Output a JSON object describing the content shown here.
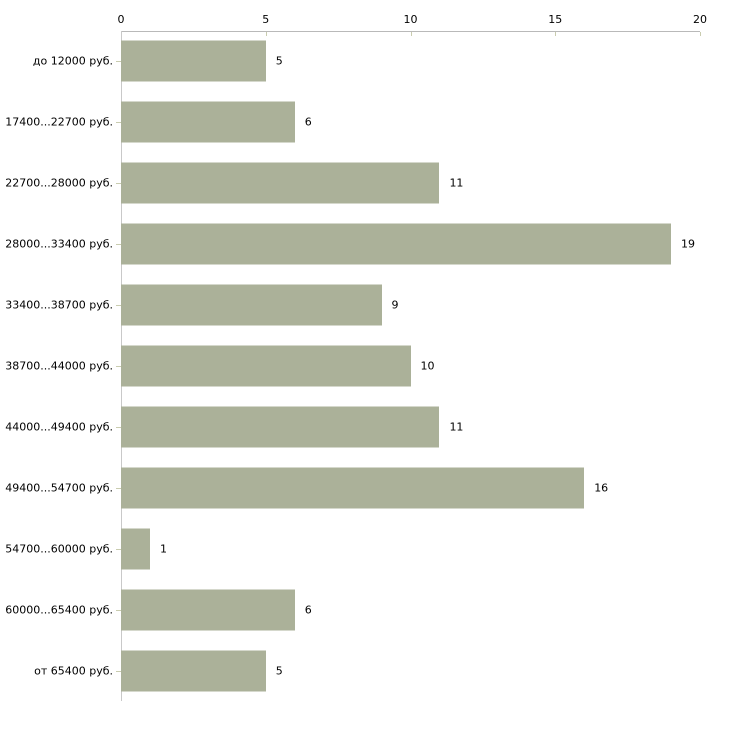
{
  "chart_data": {
    "type": "bar",
    "orientation": "horizontal",
    "title": "",
    "xlabel": "",
    "ylabel": "",
    "categories": [
      "до 12000 руб.",
      "17400...22700 руб.",
      "22700...28000 руб.",
      "28000...33400 руб.",
      "33400...38700 руб.",
      "38700...44000 руб.",
      "44000...49400 руб.",
      "49400...54700 руб.",
      "54700...60000 руб.",
      "60000...65400 руб.",
      "от 65400 руб."
    ],
    "values": [
      5,
      6,
      11,
      19,
      9,
      10,
      11,
      16,
      1,
      6,
      5
    ],
    "xlim": [
      0,
      20
    ],
    "xticks": [
      0,
      5,
      10,
      15,
      20
    ],
    "xtick_labels": [
      "0",
      "5",
      "10",
      "15",
      "20"
    ],
    "axis_position": "top",
    "grid": false,
    "legend": false,
    "value_labels_shown": true,
    "colors": {
      "bar": "#abb199",
      "axis_line": "#b9b9b9",
      "tick_mark": "#c9ccaf",
      "text": "#000000",
      "background": "#ffffff"
    }
  }
}
